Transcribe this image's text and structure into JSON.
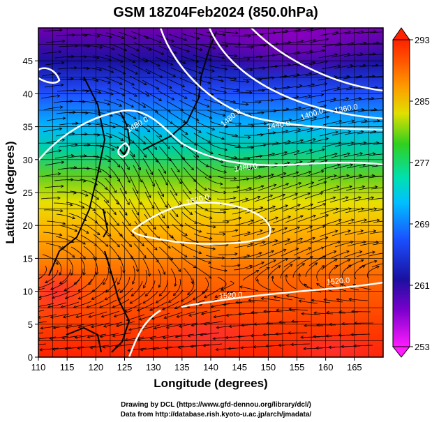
{
  "title": "GSM 18Z04Feb2024 (850.0hPa)",
  "axes": {
    "xlabel": "Longitude (degrees)",
    "ylabel": "Latitude  (degrees)",
    "x_ticks": [
      "110",
      "115",
      "120",
      "125",
      "130",
      "135",
      "140",
      "145",
      "150",
      "155",
      "160",
      "165"
    ],
    "y_ticks": [
      "0",
      "5",
      "10",
      "15",
      "20",
      "25",
      "30",
      "35",
      "40",
      "45"
    ],
    "x_range": [
      110,
      170
    ],
    "y_range": [
      0,
      50
    ]
  },
  "colorbar": {
    "labels": [
      "293",
      "285",
      "277",
      "269",
      "261",
      "253"
    ],
    "range": [
      253,
      293
    ],
    "stops": [
      "#ff1aff",
      "#7a00cc",
      "#1a10a0",
      "#1a50ff",
      "#00c0ff",
      "#00e0b0",
      "#30d020",
      "#e0e000",
      "#ff9900",
      "#ff5500",
      "#ff2200"
    ]
  },
  "contour_labels": [
    "1360.0",
    "1400.0",
    "1440.0",
    "1480.0",
    "1480.0",
    "1480.0",
    "1520.0",
    "1520.0",
    "1520.0"
  ],
  "credits": {
    "line1": "Drawing by DCL (https://www.gfd-dennou.org/library/dcl/)",
    "line2": "Data from http://database.rish.kyoto-u.ac.jp/arch/jmadata/"
  }
}
